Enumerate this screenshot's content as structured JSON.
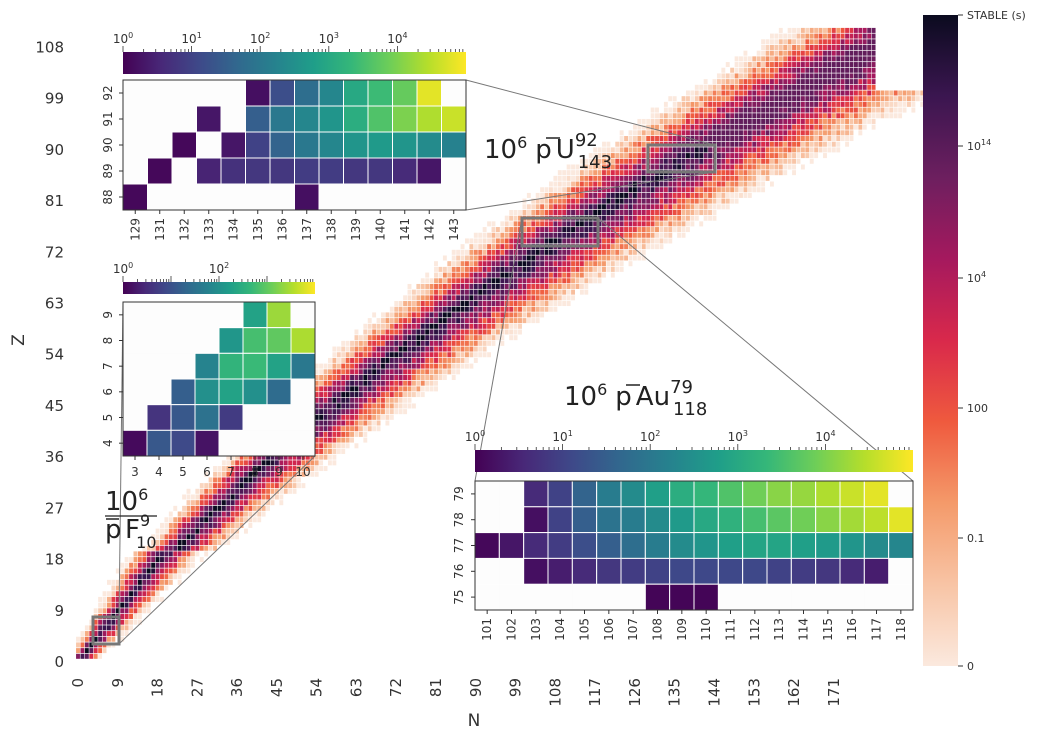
{
  "chart_data": {
    "type": "heatmap",
    "xlabel": "N",
    "ylabel": "Z",
    "xticks": [
      0,
      9,
      18,
      27,
      36,
      45,
      54,
      63,
      72,
      81,
      90,
      99,
      108,
      117,
      126,
      135,
      144,
      153,
      162,
      171
    ],
    "yticks": [
      0,
      9,
      18,
      27,
      36,
      45,
      54,
      63,
      72,
      81,
      90,
      99,
      108
    ],
    "xlim": [
      0,
      180
    ],
    "ylim": [
      0,
      111
    ],
    "colorbar": {
      "labels": [
        "STABLE (s)",
        "10^14",
        "10^4",
        "100",
        "0.1",
        "0"
      ],
      "colors": [
        "#0b0b1f",
        "#3b1650",
        "#6d1f5f",
        "#a5195e",
        "#d9294b",
        "#ef5a3e",
        "#f49a6a",
        "#f8c4a5",
        "#fbe9de"
      ]
    },
    "insets": [
      {
        "label_prefix": "10",
        "label_exp": "6",
        "bar": "p",
        "element": "U",
        "mass_sup": "92",
        "mass_sub": "143",
        "xticks": [
          "129",
          "131",
          "132",
          "133",
          "134",
          "135",
          "136",
          "137",
          "138",
          "139",
          "140",
          "141",
          "142",
          "143"
        ],
        "yticks": [
          "88",
          "89",
          "90",
          "91",
          "92"
        ],
        "colorbar_ticks": [
          "10^0",
          "10^1",
          "10^2",
          "10^3",
          "10^4"
        ],
        "log_max": 5,
        "cells": [
          [
            null,
            null,
            null,
            null,
            null,
            0.2,
            1.2,
            1.8,
            2.3,
            3.0,
            3.4,
            3.8,
            4.8,
            null
          ],
          [
            null,
            null,
            null,
            0.3,
            null,
            1.5,
            2.0,
            2.3,
            2.6,
            3.1,
            3.6,
            4.0,
            4.4,
            4.6
          ],
          [
            null,
            null,
            0.1,
            null,
            0.3,
            1.0,
            1.6,
            2.0,
            2.3,
            2.6,
            2.7,
            2.6,
            2.4,
            2.2
          ],
          [
            null,
            0.1,
            null,
            0.5,
            0.7,
            0.8,
            0.8,
            0.9,
            0.9,
            0.8,
            0.8,
            0.6,
            0.3,
            null
          ],
          [
            0.1,
            null,
            null,
            null,
            null,
            null,
            null,
            0.2,
            null,
            null,
            null,
            null,
            null,
            null
          ]
        ],
        "region": {
          "n": [
            129,
            143
          ],
          "z": [
            88,
            92
          ]
        }
      },
      {
        "label_prefix": "10",
        "label_exp": "6",
        "bar": "p",
        "element": "F",
        "mass_sup": "9",
        "mass_sub": "10",
        "xticks": [
          "3",
          "4",
          "5",
          "6",
          "7",
          "8",
          "9",
          "10"
        ],
        "yticks": [
          "4",
          "5",
          "6",
          "7",
          "8",
          "9"
        ],
        "colorbar_ticks": [
          "10^0",
          "10^2"
        ],
        "log_max": 4,
        "cells": [
          [
            null,
            null,
            null,
            null,
            null,
            2.3,
            3.4,
            null
          ],
          [
            null,
            null,
            null,
            null,
            2.1,
            2.8,
            3.0,
            3.5
          ],
          [
            null,
            null,
            null,
            1.8,
            2.6,
            2.7,
            2.3,
            1.6
          ],
          [
            null,
            null,
            1.2,
            2.0,
            2.3,
            2.0,
            1.4,
            null
          ],
          [
            null,
            0.6,
            1.1,
            1.5,
            0.7,
            null,
            null,
            null
          ],
          [
            0.1,
            1.1,
            0.9,
            0.2,
            null,
            null,
            null,
            null
          ]
        ],
        "region": {
          "n": [
            3,
            10
          ],
          "z": [
            4,
            9
          ]
        }
      },
      {
        "label_prefix": "10",
        "label_exp": "6",
        "bar": "p",
        "element": "Au",
        "mass_sup": "79",
        "mass_sub": "118",
        "xticks": [
          "101",
          "102",
          "103",
          "104",
          "105",
          "106",
          "107",
          "108",
          "109",
          "110",
          "111",
          "112",
          "113",
          "114",
          "115",
          "116",
          "117",
          "118"
        ],
        "yticks": [
          "75",
          "76",
          "77",
          "78",
          "79"
        ],
        "colorbar_ticks": [
          "10^0",
          "10^1",
          "10^2",
          "10^3",
          "10^4"
        ],
        "log_max": 5,
        "cells": [
          [
            null,
            null,
            0.6,
            1.0,
            1.6,
            2.1,
            2.4,
            2.8,
            3.1,
            3.3,
            3.6,
            3.9,
            4.1,
            4.2,
            4.4,
            4.6,
            4.8,
            null
          ],
          [
            null,
            null,
            0.2,
            1.0,
            1.5,
            1.9,
            2.1,
            2.4,
            2.7,
            3.0,
            3.2,
            3.5,
            3.7,
            3.9,
            4.1,
            4.3,
            4.5,
            4.8
          ],
          [
            0.1,
            0.3,
            0.6,
            0.9,
            1.2,
            1.5,
            1.8,
            2.1,
            2.4,
            2.6,
            2.8,
            2.9,
            2.9,
            2.8,
            2.7,
            2.6,
            2.4,
            2.3
          ],
          [
            null,
            null,
            0.2,
            0.4,
            0.6,
            0.8,
            0.9,
            1.0,
            1.1,
            1.1,
            1.1,
            1.1,
            1.0,
            0.9,
            0.8,
            0.6,
            0.4,
            null
          ],
          [
            null,
            null,
            null,
            null,
            null,
            null,
            null,
            0.05,
            0.05,
            0.05,
            null,
            null,
            null,
            null,
            null,
            null,
            null,
            null
          ]
        ],
        "region": {
          "n": [
            101,
            118
          ],
          "z": [
            75,
            79
          ]
        }
      }
    ]
  }
}
